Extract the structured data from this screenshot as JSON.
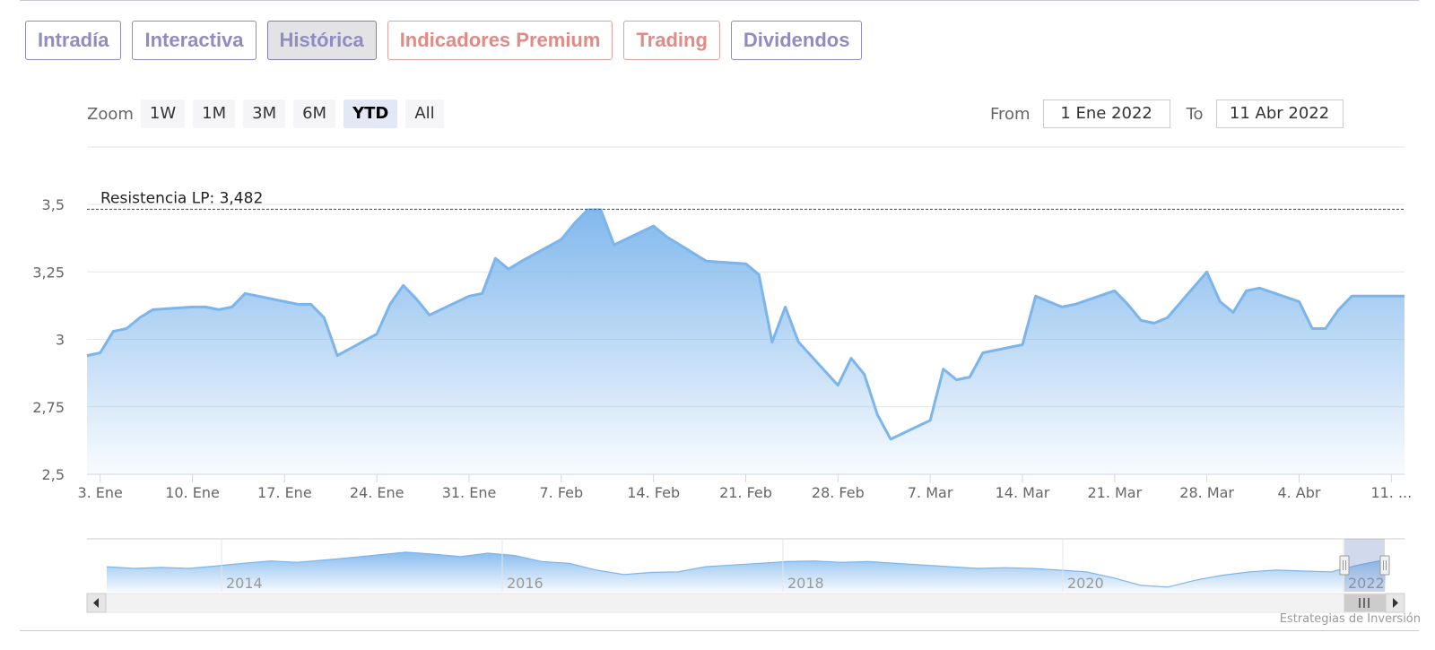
{
  "tabs": [
    {
      "label": "Intradía",
      "variant": "normal"
    },
    {
      "label": "Interactiva",
      "variant": "normal"
    },
    {
      "label": "Histórica",
      "variant": "active"
    },
    {
      "label": "Indicadores Premium",
      "variant": "premium"
    },
    {
      "label": "Trading",
      "variant": "premium"
    },
    {
      "label": "Dividendos",
      "variant": "normal"
    }
  ],
  "zoom": {
    "label": "Zoom",
    "buttons": [
      "1W",
      "1M",
      "3M",
      "6M",
      "YTD",
      "All"
    ],
    "selected": "YTD"
  },
  "range": {
    "from_label": "From",
    "from_value": "1 Ene 2022",
    "to_label": "To",
    "to_value": "11 Abr 2022"
  },
  "credit": "Estrategias de Inversión",
  "colors": {
    "series_line": "#7cb5ec",
    "resistance_line": "#2a7a2a",
    "tab_text": "#8e8cc2",
    "tab_premium_text": "#e28a85"
  },
  "chart_data": {
    "type": "area",
    "title": "",
    "xlabel": "",
    "ylabel": "",
    "ylim": [
      2.5,
      3.5
    ],
    "y_ticks": [
      2.5,
      2.75,
      3,
      3.25,
      3.5
    ],
    "y_tick_labels": [
      "2,5",
      "2,75",
      "3",
      "3,25",
      "3,5"
    ],
    "x_ticks": [
      {
        "date": "2022-01-03",
        "label": "3. Ene"
      },
      {
        "date": "2022-01-10",
        "label": "10. Ene"
      },
      {
        "date": "2022-01-17",
        "label": "17. Ene"
      },
      {
        "date": "2022-01-24",
        "label": "24. Ene"
      },
      {
        "date": "2022-01-31",
        "label": "31. Ene"
      },
      {
        "date": "2022-02-07",
        "label": "7. Feb"
      },
      {
        "date": "2022-02-14",
        "label": "14. Feb"
      },
      {
        "date": "2022-02-21",
        "label": "21. Feb"
      },
      {
        "date": "2022-02-28",
        "label": "28. Feb"
      },
      {
        "date": "2022-03-07",
        "label": "7. Mar"
      },
      {
        "date": "2022-03-14",
        "label": "14. Mar"
      },
      {
        "date": "2022-03-21",
        "label": "21. Mar"
      },
      {
        "date": "2022-03-28",
        "label": "28. Mar"
      },
      {
        "date": "2022-04-04",
        "label": "4. Abr"
      },
      {
        "date": "2022-04-11",
        "label": "11. ..."
      }
    ],
    "x_range": [
      "2022-01-02",
      "2022-04-12"
    ],
    "grid": true,
    "legend": "none",
    "resistance": {
      "label": "Resistencia LP: 3,482",
      "value": 3.482
    },
    "series": [
      {
        "x": [
          "2022-01-02",
          "2022-01-03",
          "2022-01-04",
          "2022-01-05",
          "2022-01-06",
          "2022-01-07",
          "2022-01-10",
          "2022-01-11",
          "2022-01-12",
          "2022-01-13",
          "2022-01-14",
          "2022-01-17",
          "2022-01-18",
          "2022-01-19",
          "2022-01-20",
          "2022-01-21",
          "2022-01-24",
          "2022-01-25",
          "2022-01-26",
          "2022-01-27",
          "2022-01-28",
          "2022-01-31",
          "2022-02-01",
          "2022-02-02",
          "2022-02-03",
          "2022-02-04",
          "2022-02-07",
          "2022-02-08",
          "2022-02-09",
          "2022-02-10",
          "2022-02-11",
          "2022-02-14",
          "2022-02-15",
          "2022-02-16",
          "2022-02-17",
          "2022-02-18",
          "2022-02-21",
          "2022-02-22",
          "2022-02-23",
          "2022-02-24",
          "2022-02-25",
          "2022-02-28",
          "2022-03-01",
          "2022-03-02",
          "2022-03-03",
          "2022-03-04",
          "2022-03-07",
          "2022-03-08",
          "2022-03-09",
          "2022-03-10",
          "2022-03-11",
          "2022-03-14",
          "2022-03-15",
          "2022-03-16",
          "2022-03-17",
          "2022-03-18",
          "2022-03-21",
          "2022-03-22",
          "2022-03-23",
          "2022-03-24",
          "2022-03-25",
          "2022-03-28",
          "2022-03-29",
          "2022-03-30",
          "2022-03-31",
          "2022-04-01",
          "2022-04-04",
          "2022-04-05",
          "2022-04-06",
          "2022-04-07",
          "2022-04-08",
          "2022-04-11",
          "2022-04-12"
        ],
        "values": [
          2.94,
          2.95,
          3.03,
          3.04,
          3.08,
          3.11,
          3.12,
          3.12,
          3.11,
          3.12,
          3.17,
          3.14,
          3.13,
          3.13,
          3.08,
          2.94,
          3.02,
          3.13,
          3.2,
          3.15,
          3.09,
          3.16,
          3.17,
          3.3,
          3.26,
          3.29,
          3.37,
          3.43,
          3.48,
          3.48,
          3.35,
          3.42,
          3.38,
          3.35,
          3.32,
          3.29,
          3.28,
          3.24,
          2.99,
          3.12,
          2.99,
          2.83,
          2.93,
          2.87,
          2.72,
          2.63,
          2.7,
          2.89,
          2.85,
          2.86,
          2.95,
          2.98,
          3.16,
          3.14,
          3.12,
          3.13,
          3.18,
          3.13,
          3.07,
          3.06,
          3.08,
          3.25,
          3.14,
          3.1,
          3.18,
          3.19,
          3.14,
          3.04,
          3.04,
          3.11,
          3.16,
          3.16,
          3.16
        ]
      }
    ],
    "navigator": {
      "x_labels": [
        "2014",
        "2016",
        "2018",
        "2020",
        "2022"
      ],
      "values": [
        2.95,
        2.9,
        2.93,
        2.9,
        2.97,
        3.05,
        3.12,
        3.08,
        3.15,
        3.22,
        3.3,
        3.38,
        3.32,
        3.25,
        3.35,
        3.28,
        3.1,
        3.05,
        2.85,
        2.72,
        2.78,
        2.8,
        2.95,
        3.0,
        3.05,
        3.1,
        3.12,
        3.08,
        3.1,
        3.05,
        3.0,
        2.95,
        2.9,
        2.92,
        2.9,
        2.85,
        2.8,
        2.62,
        2.4,
        2.35,
        2.55,
        2.7,
        2.8,
        2.85,
        2.82,
        2.8,
        3.0,
        3.16
      ]
    }
  }
}
